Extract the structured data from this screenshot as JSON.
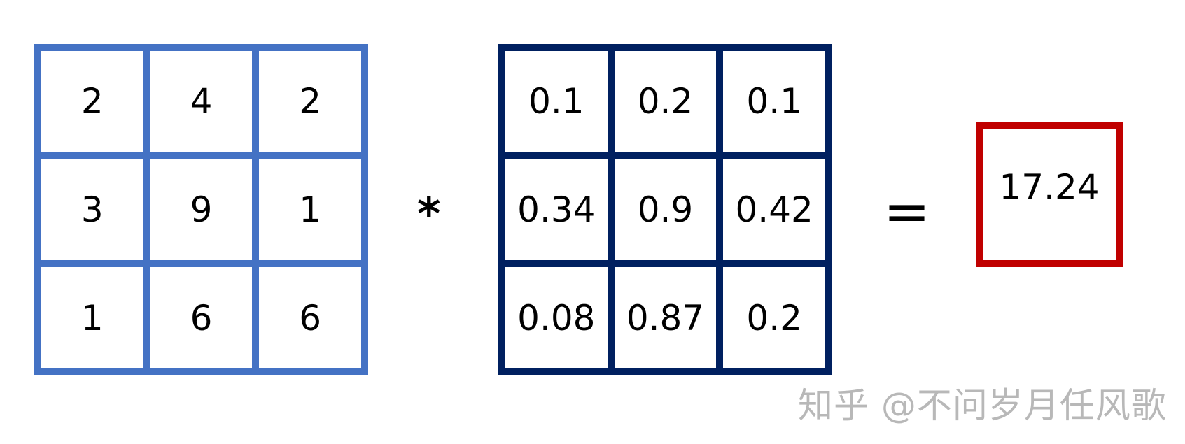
{
  "input_matrix": [
    [
      "2",
      "4",
      "2"
    ],
    [
      "3",
      "9",
      "1"
    ],
    [
      "1",
      "6",
      "6"
    ]
  ],
  "kernel_matrix": [
    [
      "0.1",
      "0.2",
      "0.1"
    ],
    [
      "0.34",
      "0.9",
      "0.42"
    ],
    [
      "0.08",
      "0.87",
      "0.2"
    ]
  ],
  "operator": "*",
  "equals": "=",
  "result": "17.24",
  "watermark": "知乎 @不问岁月任风歌",
  "colors": {
    "input_border": "#4472c4",
    "kernel_border": "#002060",
    "result_border": "#c00000"
  }
}
